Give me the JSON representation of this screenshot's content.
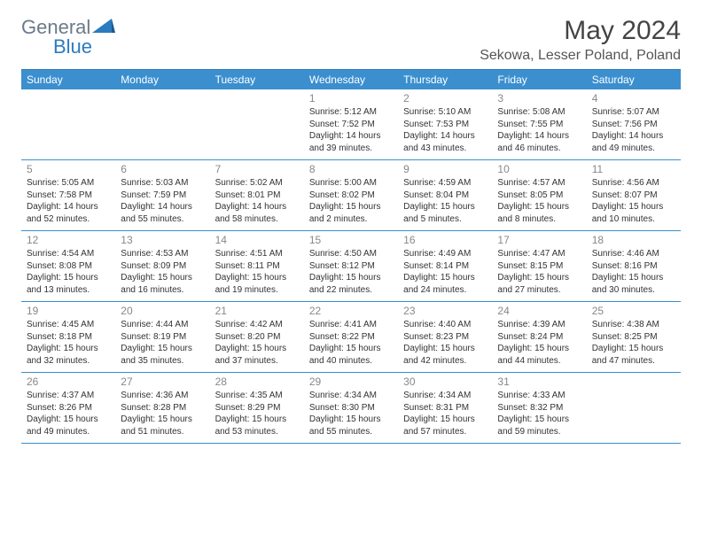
{
  "logo": {
    "general": "General",
    "blue": "Blue"
  },
  "title": "May 2024",
  "location": "Sekowa, Lesser Poland, Poland",
  "colors": {
    "header_bg": "#3b8fcf",
    "header_text": "#ffffff",
    "border": "#3b8fcf",
    "day_num": "#888888",
    "body_text": "#333333",
    "logo_gray": "#6b7a8a",
    "logo_blue": "#2b7bbf",
    "background": "#ffffff"
  },
  "day_headers": [
    "Sunday",
    "Monday",
    "Tuesday",
    "Wednesday",
    "Thursday",
    "Friday",
    "Saturday"
  ],
  "weeks": [
    [
      null,
      null,
      null,
      {
        "n": "1",
        "sunrise": "5:12 AM",
        "sunset": "7:52 PM",
        "daylight": "14 hours and 39 minutes."
      },
      {
        "n": "2",
        "sunrise": "5:10 AM",
        "sunset": "7:53 PM",
        "daylight": "14 hours and 43 minutes."
      },
      {
        "n": "3",
        "sunrise": "5:08 AM",
        "sunset": "7:55 PM",
        "daylight": "14 hours and 46 minutes."
      },
      {
        "n": "4",
        "sunrise": "5:07 AM",
        "sunset": "7:56 PM",
        "daylight": "14 hours and 49 minutes."
      }
    ],
    [
      {
        "n": "5",
        "sunrise": "5:05 AM",
        "sunset": "7:58 PM",
        "daylight": "14 hours and 52 minutes."
      },
      {
        "n": "6",
        "sunrise": "5:03 AM",
        "sunset": "7:59 PM",
        "daylight": "14 hours and 55 minutes."
      },
      {
        "n": "7",
        "sunrise": "5:02 AM",
        "sunset": "8:01 PM",
        "daylight": "14 hours and 58 minutes."
      },
      {
        "n": "8",
        "sunrise": "5:00 AM",
        "sunset": "8:02 PM",
        "daylight": "15 hours and 2 minutes."
      },
      {
        "n": "9",
        "sunrise": "4:59 AM",
        "sunset": "8:04 PM",
        "daylight": "15 hours and 5 minutes."
      },
      {
        "n": "10",
        "sunrise": "4:57 AM",
        "sunset": "8:05 PM",
        "daylight": "15 hours and 8 minutes."
      },
      {
        "n": "11",
        "sunrise": "4:56 AM",
        "sunset": "8:07 PM",
        "daylight": "15 hours and 10 minutes."
      }
    ],
    [
      {
        "n": "12",
        "sunrise": "4:54 AM",
        "sunset": "8:08 PM",
        "daylight": "15 hours and 13 minutes."
      },
      {
        "n": "13",
        "sunrise": "4:53 AM",
        "sunset": "8:09 PM",
        "daylight": "15 hours and 16 minutes."
      },
      {
        "n": "14",
        "sunrise": "4:51 AM",
        "sunset": "8:11 PM",
        "daylight": "15 hours and 19 minutes."
      },
      {
        "n": "15",
        "sunrise": "4:50 AM",
        "sunset": "8:12 PM",
        "daylight": "15 hours and 22 minutes."
      },
      {
        "n": "16",
        "sunrise": "4:49 AM",
        "sunset": "8:14 PM",
        "daylight": "15 hours and 24 minutes."
      },
      {
        "n": "17",
        "sunrise": "4:47 AM",
        "sunset": "8:15 PM",
        "daylight": "15 hours and 27 minutes."
      },
      {
        "n": "18",
        "sunrise": "4:46 AM",
        "sunset": "8:16 PM",
        "daylight": "15 hours and 30 minutes."
      }
    ],
    [
      {
        "n": "19",
        "sunrise": "4:45 AM",
        "sunset": "8:18 PM",
        "daylight": "15 hours and 32 minutes."
      },
      {
        "n": "20",
        "sunrise": "4:44 AM",
        "sunset": "8:19 PM",
        "daylight": "15 hours and 35 minutes."
      },
      {
        "n": "21",
        "sunrise": "4:42 AM",
        "sunset": "8:20 PM",
        "daylight": "15 hours and 37 minutes."
      },
      {
        "n": "22",
        "sunrise": "4:41 AM",
        "sunset": "8:22 PM",
        "daylight": "15 hours and 40 minutes."
      },
      {
        "n": "23",
        "sunrise": "4:40 AM",
        "sunset": "8:23 PM",
        "daylight": "15 hours and 42 minutes."
      },
      {
        "n": "24",
        "sunrise": "4:39 AM",
        "sunset": "8:24 PM",
        "daylight": "15 hours and 44 minutes."
      },
      {
        "n": "25",
        "sunrise": "4:38 AM",
        "sunset": "8:25 PM",
        "daylight": "15 hours and 47 minutes."
      }
    ],
    [
      {
        "n": "26",
        "sunrise": "4:37 AM",
        "sunset": "8:26 PM",
        "daylight": "15 hours and 49 minutes."
      },
      {
        "n": "27",
        "sunrise": "4:36 AM",
        "sunset": "8:28 PM",
        "daylight": "15 hours and 51 minutes."
      },
      {
        "n": "28",
        "sunrise": "4:35 AM",
        "sunset": "8:29 PM",
        "daylight": "15 hours and 53 minutes."
      },
      {
        "n": "29",
        "sunrise": "4:34 AM",
        "sunset": "8:30 PM",
        "daylight": "15 hours and 55 minutes."
      },
      {
        "n": "30",
        "sunrise": "4:34 AM",
        "sunset": "8:31 PM",
        "daylight": "15 hours and 57 minutes."
      },
      {
        "n": "31",
        "sunrise": "4:33 AM",
        "sunset": "8:32 PM",
        "daylight": "15 hours and 59 minutes."
      },
      null
    ]
  ],
  "labels": {
    "sunrise": "Sunrise:",
    "sunset": "Sunset:",
    "daylight": "Daylight:"
  }
}
